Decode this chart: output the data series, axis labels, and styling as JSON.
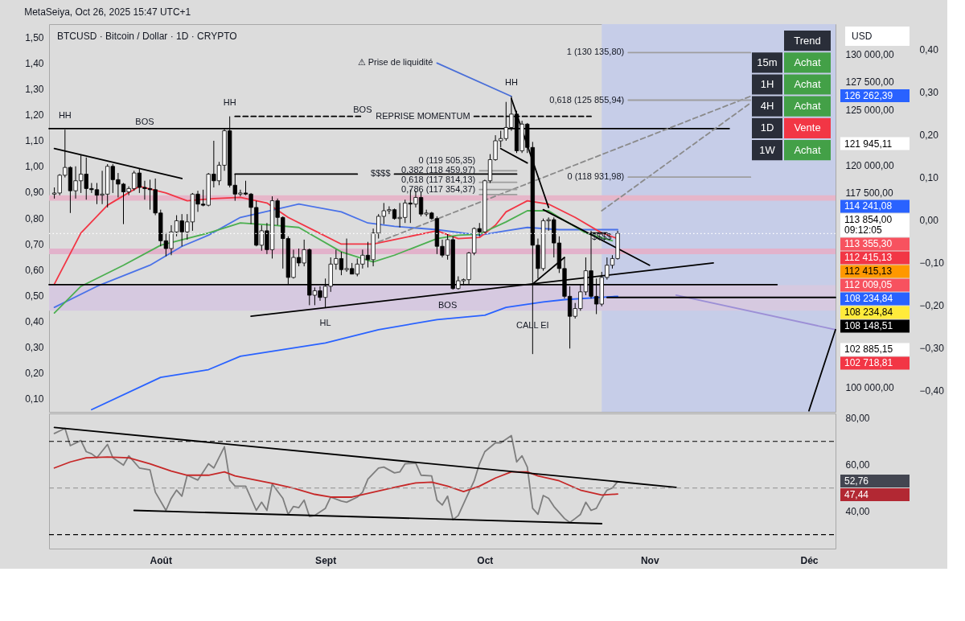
{
  "chart_data": [
    {
      "type": "candlestick",
      "title": "BTCUSD · Bitcoin / Dollar · 1D · CRYPTO",
      "ylabel": "USD",
      "x": [
        "2025-07-12",
        "2025-07-13",
        "2025-07-14",
        "2025-07-15",
        "2025-07-16",
        "2025-07-17",
        "2025-07-18",
        "2025-07-19",
        "2025-07-20",
        "2025-07-21",
        "2025-07-22",
        "2025-07-23",
        "2025-07-24",
        "2025-07-25",
        "2025-07-26",
        "2025-07-27",
        "2025-07-28",
        "2025-07-29",
        "2025-07-30",
        "2025-07-31",
        "2025-08-01",
        "2025-08-02",
        "2025-08-03",
        "2025-08-04",
        "2025-08-05",
        "2025-08-06",
        "2025-08-07",
        "2025-08-08",
        "2025-08-09",
        "2025-08-10",
        "2025-08-11",
        "2025-08-12",
        "2025-08-13",
        "2025-08-14",
        "2025-08-15",
        "2025-08-16",
        "2025-08-17",
        "2025-08-18",
        "2025-08-19",
        "2025-08-20",
        "2025-08-21",
        "2025-08-22",
        "2025-08-23",
        "2025-08-24",
        "2025-08-25",
        "2025-08-26",
        "2025-08-27",
        "2025-08-28",
        "2025-08-29",
        "2025-08-30",
        "2025-08-31",
        "2025-09-01",
        "2025-09-02",
        "2025-09-03",
        "2025-09-04",
        "2025-09-05",
        "2025-09-06",
        "2025-09-07",
        "2025-09-08",
        "2025-09-09",
        "2025-09-10",
        "2025-09-11",
        "2025-09-12",
        "2025-09-13",
        "2025-09-14",
        "2025-09-15",
        "2025-09-16",
        "2025-09-17",
        "2025-09-18",
        "2025-09-19",
        "2025-09-20",
        "2025-09-21",
        "2025-09-22",
        "2025-09-23",
        "2025-09-24",
        "2025-09-25",
        "2025-09-26",
        "2025-09-27",
        "2025-09-28",
        "2025-09-29",
        "2025-09-30",
        "2025-10-01",
        "2025-10-02",
        "2025-10-03",
        "2025-10-04",
        "2025-10-05",
        "2025-10-06",
        "2025-10-07",
        "2025-10-08",
        "2025-10-09",
        "2025-10-10",
        "2025-10-11",
        "2025-10-12",
        "2025-10-13",
        "2025-10-14",
        "2025-10-15",
        "2025-10-16",
        "2025-10-17",
        "2025-10-18",
        "2025-10-19",
        "2025-10-20",
        "2025-10-21",
        "2025-10-22",
        "2025-10-23",
        "2025-10-24",
        "2025-10-25",
        "2025-10-26"
      ],
      "ohlc": [
        [
          117400,
          118000,
          117000,
          117500
        ],
        [
          117500,
          119200,
          117300,
          119100
        ],
        [
          119100,
          123200,
          118900,
          119800
        ],
        [
          119800,
          119900,
          115700,
          117700
        ],
        [
          117700,
          119900,
          117000,
          118600
        ],
        [
          118600,
          120900,
          117500,
          119200
        ],
        [
          119200,
          120700,
          116900,
          117900
        ],
        [
          117900,
          118400,
          117500,
          117800
        ],
        [
          117800,
          118400,
          116500,
          117300
        ],
        [
          117300,
          119500,
          116500,
          117400
        ],
        [
          117400,
          120100,
          116200,
          119900
        ],
        [
          119900,
          120100,
          117500,
          118700
        ],
        [
          118700,
          119300,
          117100,
          118300
        ],
        [
          118300,
          118400,
          114700,
          117600
        ],
        [
          117600,
          118100,
          117300,
          117900
        ],
        [
          117900,
          119500,
          117700,
          119300
        ],
        [
          119300,
          119700,
          117500,
          118000
        ],
        [
          118000,
          118600,
          116900,
          117900
        ],
        [
          117900,
          118700,
          116000,
          117800
        ],
        [
          117800,
          118800,
          115500,
          115700
        ],
        [
          115700,
          116000,
          112700,
          113200
        ],
        [
          113200,
          113900,
          111800,
          112500
        ],
        [
          112500,
          114600,
          111900,
          114000
        ],
        [
          114000,
          115500,
          113600,
          115000
        ],
        [
          115000,
          115600,
          112700,
          114000
        ],
        [
          114000,
          115600,
          113300,
          114900
        ],
        [
          114900,
          117500,
          114100,
          117400
        ],
        [
          117400,
          117700,
          115800,
          116500
        ],
        [
          116500,
          117800,
          116300,
          116400
        ],
        [
          116400,
          119300,
          116300,
          119200
        ],
        [
          119200,
          122200,
          118000,
          118600
        ],
        [
          118600,
          120300,
          118200,
          120000
        ],
        [
          120000,
          123300,
          119500,
          123100
        ],
        [
          123100,
          124400,
          118000,
          118200
        ],
        [
          118200,
          119200,
          116800,
          117400
        ],
        [
          117400,
          117800,
          117200,
          117500
        ],
        [
          117500,
          118600,
          117300,
          117400
        ],
        [
          117400,
          117500,
          114700,
          116200
        ],
        [
          116200,
          116800,
          112700,
          112800
        ],
        [
          112800,
          114600,
          112300,
          114100
        ],
        [
          114100,
          114800,
          112000,
          112400
        ],
        [
          112400,
          117200,
          111600,
          116800
        ],
        [
          116800,
          117000,
          114600,
          115300
        ],
        [
          115300,
          115400,
          110700,
          113400
        ],
        [
          113400,
          113600,
          109300,
          109900
        ],
        [
          109900,
          112400,
          109800,
          111700
        ],
        [
          111700,
          112500,
          110900,
          111200
        ],
        [
          111200,
          113300,
          110900,
          112400
        ],
        [
          112400,
          112500,
          107400,
          108300
        ],
        [
          108300,
          109000,
          107400,
          108700
        ],
        [
          108700,
          109100,
          107800,
          108100
        ],
        [
          108100,
          109800,
          107200,
          109100
        ],
        [
          109100,
          111700,
          108600,
          111100
        ],
        [
          111100,
          112400,
          110600,
          111600
        ],
        [
          111600,
          112200,
          110100,
          110600
        ],
        [
          110600,
          113400,
          110400,
          110700
        ],
        [
          110700,
          111200,
          110200,
          110200
        ],
        [
          110200,
          111600,
          110000,
          111100
        ],
        [
          111100,
          112400,
          110700,
          111900
        ],
        [
          111900,
          113100,
          110800,
          111500
        ],
        [
          111500,
          114300,
          110900,
          113900
        ],
        [
          113900,
          115600,
          113400,
          115400
        ],
        [
          115400,
          116600,
          114700,
          115900
        ],
        [
          115900,
          116300,
          115600,
          116000
        ],
        [
          116000,
          116100,
          115100,
          115200
        ],
        [
          115200,
          116600,
          114400,
          115300
        ],
        [
          115300,
          116900,
          114800,
          116600
        ],
        [
          116600,
          117800,
          114800,
          116500
        ],
        [
          116500,
          117700,
          116200,
          117100
        ],
        [
          117100,
          117600,
          115400,
          115600
        ],
        [
          115600,
          116000,
          115400,
          115700
        ],
        [
          115700,
          115800,
          115100,
          115200
        ],
        [
          115200,
          115400,
          112000,
          112700
        ],
        [
          112700,
          113300,
          111700,
          111900
        ],
        [
          111900,
          113800,
          111500,
          113300
        ],
        [
          113300,
          113600,
          108800,
          108900
        ],
        [
          108900,
          110000,
          108800,
          109600
        ],
        [
          109600,
          109800,
          109200,
          109700
        ],
        [
          109700,
          112200,
          109300,
          112100
        ],
        [
          112100,
          114400,
          111900,
          114300
        ],
        [
          114300,
          114800,
          113600,
          114000
        ],
        [
          114000,
          118700,
          113900,
          118600
        ],
        [
          118600,
          121000,
          118400,
          120500
        ],
        [
          120500,
          122700,
          120400,
          122200
        ],
        [
          122200,
          123100,
          121600,
          122400
        ],
        [
          122400,
          125700,
          122200,
          123400
        ],
        [
          123400,
          126200,
          123100,
          124600
        ],
        [
          124600,
          124900,
          121100,
          121300
        ],
        [
          121300,
          124000,
          121100,
          123700
        ],
        [
          123700,
          123800,
          121100,
          121600
        ],
        [
          121600,
          122100,
          103000,
          112800
        ],
        [
          112800,
          113400,
          109800,
          110700
        ],
        [
          110700,
          115200,
          110500,
          115000
        ],
        [
          115000,
          115300,
          114100,
          115100
        ],
        [
          115100,
          115300,
          111700,
          113000
        ],
        [
          113000,
          113600,
          110300,
          110700
        ],
        [
          110700,
          111700,
          108000,
          108200
        ],
        [
          108200,
          109100,
          103500,
          106400
        ],
        [
          106400,
          107600,
          106200,
          107100
        ],
        [
          107100,
          109300,
          106900,
          108600
        ],
        [
          108600,
          111700,
          108300,
          110500
        ],
        [
          110500,
          114100,
          108000,
          108200
        ],
        [
          108200,
          109800,
          106600,
          107500
        ],
        [
          107500,
          110400,
          107300,
          109900
        ],
        [
          109900,
          111700,
          109700,
          111000
        ],
        [
          111000,
          111900,
          110700,
          111600
        ],
        [
          111600,
          114100,
          111500,
          113854
        ]
      ],
      "colors": [
        "#ffffff",
        "#ffffff",
        "#ffffff",
        "#000000",
        "#ffffff",
        "#ffffff",
        "#000000",
        "#000000",
        "#000000",
        "#ffffff",
        "#ffffff",
        "#000000",
        "#000000",
        "#000000",
        "#ffffff",
        "#ffffff",
        "#000000",
        "#000000",
        "#000000",
        "#000000",
        "#000000",
        "#000000",
        "#ffffff",
        "#ffffff",
        "#000000",
        "#ffffff",
        "#ffffff",
        "#000000",
        "#000000",
        "#ffffff",
        "#000000",
        "#ffffff",
        "#ffffff",
        "#000000",
        "#000000",
        "#ffffff",
        "#000000",
        "#000000",
        "#000000",
        "#ffffff",
        "#000000",
        "#ffffff",
        "#000000",
        "#000000",
        "#000000",
        "#ffffff",
        "#000000",
        "#ffffff",
        "#000000",
        "#ffffff",
        "#000000",
        "#ffffff",
        "#ffffff",
        "#ffffff",
        "#000000",
        "#ffffff",
        "#000000",
        "#ffffff",
        "#ffffff",
        "#000000",
        "#ffffff",
        "#ffffff",
        "#ffffff",
        "#ffffff",
        "#000000",
        "#ffffff",
        "#ffffff",
        "#000000",
        "#ffffff",
        "#000000",
        "#ffffff",
        "#000000",
        "#000000",
        "#000000",
        "#ffffff",
        "#000000",
        "#ffffff",
        "#ffffff",
        "#ffffff",
        "#ffffff",
        "#000000",
        "#ffffff",
        "#ffffff",
        "#ffffff",
        "#ffffff",
        "#ffffff",
        "#ffffff",
        "#000000",
        "#ffffff",
        "#000000",
        "#000000",
        "#000000",
        "#ffffff",
        "#ffffff",
        "#000000",
        "#000000",
        "#000000",
        "#000000",
        "#ffffff",
        "#ffffff",
        "#ffffff",
        "#000000",
        "#000000",
        "#ffffff",
        "#ffffff",
        "#ffffff",
        "#ffffff"
      ],
      "xlim": [
        "2025-07-11",
        "2025-12-06"
      ],
      "ylim": [
        97800,
        132700
      ],
      "yticks": [
        {
          "value": 100000,
          "label": "100 000,00"
        },
        {
          "value": 117500,
          "label": "117 500,00"
        },
        {
          "value": 120000,
          "label": "120 000,00"
        },
        {
          "value": 125000,
          "label": "125 000,00"
        },
        {
          "value": 127500,
          "label": "127 500,00"
        },
        {
          "value": 130000,
          "label": "130 000,00"
        }
      ],
      "y2lim": [
        0.05,
        1.55
      ],
      "y2ticks": [
        {
          "value": 0.1,
          "label": "0,10"
        },
        {
          "value": 0.2,
          "label": "0,20"
        },
        {
          "value": 0.3,
          "label": "0,30"
        },
        {
          "value": 0.4,
          "label": "0,40"
        },
        {
          "value": 0.5,
          "label": "0,50"
        },
        {
          "value": 0.6,
          "label": "0,60"
        },
        {
          "value": 0.7,
          "label": "0,70"
        },
        {
          "value": 0.8,
          "label": "0,80"
        },
        {
          "value": 0.9,
          "label": "0,90"
        },
        {
          "value": 1.0,
          "label": "1,00"
        },
        {
          "value": 1.1,
          "label": "1,10"
        },
        {
          "value": 1.2,
          "label": "1,20"
        },
        {
          "value": 1.3,
          "label": "1,30"
        },
        {
          "value": 1.4,
          "label": "1,40"
        },
        {
          "value": 1.5,
          "label": "1,50"
        }
      ],
      "y3lim": [
        -0.45,
        0.46
      ],
      "y3ticks": [
        {
          "value": -0.4,
          "label": "−0,40"
        },
        {
          "value": -0.3,
          "label": "−0,30"
        },
        {
          "value": -0.2,
          "label": "−0,20"
        },
        {
          "value": -0.1,
          "label": "−0,10"
        },
        {
          "value": 0,
          "label": "0,00"
        },
        {
          "value": 0.1,
          "label": "0,10"
        },
        {
          "value": 0.2,
          "label": "0,20"
        },
        {
          "value": 0.3,
          "label": "0,30"
        },
        {
          "value": 0.4,
          "label": "0,40"
        }
      ],
      "tick_labels": "y",
      "bands": [
        {
          "axis": "x",
          "from": "2025-10-23",
          "to": "2025-12-06",
          "color": "#c6cde8"
        },
        {
          "axis": "y",
          "from": 111990,
          "to": 112500,
          "color": "#e2b2cb"
        },
        {
          "axis": "y",
          "from": 106900,
          "to": 109200,
          "color": "#d6c9e0"
        },
        {
          "axis": "y",
          "from": 116800,
          "to": 117300,
          "color": "#e6b6c9"
        }
      ],
      "series": [
        {
          "type": "line",
          "color": "#2962ff",
          "x": [
            "2025-07-19",
            "2025-08-01",
            "2025-08-10",
            "2025-08-16",
            "2025-09-01",
            "2025-09-11",
            "2025-09-22",
            "2025-10-01",
            "2025-10-05",
            "2025-10-12",
            "2025-10-16",
            "2025-10-26"
          ],
          "values": [
            98000,
            100900,
            101600,
            102800,
            104000,
            105200,
            106100,
            106500,
            107200,
            107700,
            107900,
            108200
          ]
        },
        {
          "type": "line",
          "color": "#4a72e8",
          "x": [
            "2025-07-12",
            "2025-07-20",
            "2025-07-30",
            "2025-08-05",
            "2025-08-10",
            "2025-08-16",
            "2025-08-27",
            "2025-09-04",
            "2025-09-09",
            "2025-09-14",
            "2025-09-22",
            "2025-09-30",
            "2025-10-05",
            "2025-10-09",
            "2025-10-15",
            "2025-10-26"
          ],
          "values": [
            107200,
            109100,
            111000,
            112700,
            113700,
            115300,
            116500,
            115800,
            114800,
            114500,
            114200,
            113700,
            114100,
            114400,
            114200,
            114200
          ]
        },
        {
          "type": "line",
          "color": "#f23645",
          "x": [
            "2025-07-12",
            "2025-07-17",
            "2025-07-22",
            "2025-07-28",
            "2025-08-02",
            "2025-08-06",
            "2025-08-11",
            "2025-08-16",
            "2025-08-21",
            "2025-08-25",
            "2025-08-30",
            "2025-09-04",
            "2025-09-10",
            "2025-09-14",
            "2025-09-22",
            "2025-09-26",
            "2025-09-30",
            "2025-10-03",
            "2025-10-05",
            "2025-10-09",
            "2025-10-13",
            "2025-10-18",
            "2025-10-23",
            "2025-10-26"
          ],
          "values": [
            109300,
            113900,
            116400,
            118100,
            117500,
            116800,
            117000,
            117100,
            116600,
            115300,
            114100,
            112900,
            112900,
            113300,
            114100,
            113400,
            113500,
            114600,
            115800,
            116800,
            116500,
            115300,
            113900,
            113400
          ]
        },
        {
          "type": "line",
          "color": "#4caf50",
          "x": [
            "2025-07-12",
            "2025-07-17",
            "2025-07-25",
            "2025-08-01",
            "2025-08-10",
            "2025-08-16",
            "2025-08-22",
            "2025-08-27",
            "2025-09-04",
            "2025-09-10",
            "2025-09-14",
            "2025-09-22",
            "2025-09-26",
            "2025-09-30",
            "2025-10-05",
            "2025-10-09",
            "2025-10-13",
            "2025-10-15",
            "2025-10-20",
            "2025-10-25"
          ],
          "values": [
            106700,
            109100,
            111000,
            112800,
            113900,
            114800,
            114600,
            114400,
            112200,
            111300,
            111900,
            113400,
            113700,
            113800,
            114900,
            115900,
            115900,
            115300,
            113900,
            113200
          ]
        },
        {
          "type": "line",
          "color": "#000000",
          "x": [
            "2025-07-11",
            "2025-11-16"
          ],
          "values": [
            123300,
            123300
          ]
        },
        {
          "type": "line",
          "color": "#000000",
          "x": [
            "2025-07-11",
            "2025-11-25"
          ],
          "values": [
            109250,
            109250
          ]
        },
        {
          "type": "line",
          "color": "#000000",
          "x": [
            "2025-07-12",
            "2025-08-05"
          ],
          "values": [
            121500,
            118800
          ]
        },
        {
          "type": "line",
          "color": "#000000",
          "line_style": "dashed",
          "x": [
            "2025-08-15",
            "2025-09-08"
          ],
          "values": [
            124400,
            124400
          ]
        },
        {
          "type": "line",
          "color": "#000000",
          "line_style": "dashed",
          "x": [
            "2025-09-29",
            "2025-10-21"
          ],
          "values": [
            124400,
            124400
          ]
        },
        {
          "type": "line",
          "color": "#000000",
          "x": [
            "2025-08-15",
            "2025-09-07"
          ],
          "values": [
            119200,
            119200
          ]
        },
        {
          "type": "line",
          "color": "#000000",
          "x": [
            "2025-09-14",
            "2025-10-07"
          ],
          "values": [
            119200,
            119200
          ]
        },
        {
          "type": "line",
          "color": "#000000",
          "x": [
            "2025-08-18",
            "2025-11-13"
          ],
          "values": [
            106400,
            111200
          ]
        },
        {
          "type": "line",
          "color": "#8a8a8a",
          "line_style": "dashed",
          "x": [
            "2025-09-11",
            "2025-11-20"
          ],
          "values": [
            113100,
            126200
          ]
        },
        {
          "type": "line",
          "color": "#8a8a8a",
          "line_style": "dashed",
          "x": [
            "2025-10-23",
            "2025-11-20"
          ],
          "values": [
            115900,
            125600
          ]
        },
        {
          "type": "line",
          "color": "#000000",
          "x": [
            "2025-10-06",
            "2025-10-13"
          ],
          "values": [
            126000,
            116200
          ]
        },
        {
          "type": "line",
          "color": "#000000",
          "x": [
            "2025-10-04",
            "2025-10-09"
          ],
          "values": [
            121500,
            120200
          ]
        },
        {
          "type": "line",
          "color": "#000000",
          "x": [
            "2025-10-10",
            "2025-10-16"
          ],
          "values": [
            109300,
            111700
          ]
        },
        {
          "type": "line",
          "color": "#000000",
          "x": [
            "2025-10-12",
            "2025-11-01"
          ],
          "values": [
            116000,
            111000
          ]
        },
        {
          "type": "line",
          "color": "#000000",
          "x": [
            "2025-10-21",
            "2025-10-24"
          ],
          "values": [
            113900,
            113900
          ]
        },
        {
          "type": "line",
          "color": "#9c8fd6",
          "x": [
            "2025-11-06",
            "2025-12-06"
          ],
          "values": [
            108300,
            105200
          ]
        },
        {
          "type": "line",
          "color": "#000000",
          "x": [
            "2025-12-01",
            "2025-12-06"
          ],
          "values": [
            97900,
            105200
          ]
        },
        {
          "type": "line",
          "color": "#000000",
          "x": [
            "2025-10-24",
            "2025-12-06"
          ],
          "values": [
            108100,
            108100
          ]
        },
        {
          "type": "line",
          "color": "#4a6fd8",
          "x": [
            "2025-09-22",
            "2025-10-06"
          ],
          "values": [
            129200,
            126200
          ]
        },
        {
          "type": "line",
          "color": "#9e9e9e",
          "x": [
            "2025-10-28",
            "2025-11-20"
          ],
          "values": [
            130135.8,
            130135.8
          ]
        },
        {
          "type": "line",
          "color": "#9e9e9e",
          "x": [
            "2025-10-28",
            "2025-11-20"
          ],
          "values": [
            125855.94,
            125855.94
          ]
        },
        {
          "type": "line",
          "color": "#9e9e9e",
          "x": [
            "2025-10-28",
            "2025-11-20"
          ],
          "values": [
            118931.98,
            118931.98
          ]
        },
        {
          "type": "line",
          "color": "#9e9e9e",
          "x": [
            "2025-09-30",
            "2025-10-07"
          ],
          "values": [
            119505.35,
            119505.35
          ]
        },
        {
          "type": "line",
          "color": "#9e9e9e",
          "x": [
            "2025-09-30",
            "2025-10-07"
          ],
          "values": [
            118459.97,
            118459.97
          ]
        },
        {
          "type": "line",
          "color": "#9e9e9e",
          "x": [
            "2025-09-30",
            "2025-10-07"
          ],
          "values": [
            117814.13,
            117814.13
          ]
        },
        {
          "type": "line",
          "color": "#9e9e9e",
          "x": [
            "2025-09-30",
            "2025-10-07"
          ],
          "values": [
            117354.37,
            117354.37
          ]
        }
      ],
      "ref_lines": [
        {
          "axis": "y",
          "value": 113854,
          "label": "113 854,00\n09:12:05",
          "color": "#ffffff",
          "line_style": "dotted"
        }
      ],
      "annotations": [
        "MetaSeiya, Oct 26, 2025 15:47 UTC+1",
        {
          "text": "HH",
          "x": "2025-07-14",
          "y": 123200
        },
        {
          "text": "HH",
          "x": "2025-08-14",
          "y": 124400
        },
        {
          "text": "HH",
          "x": "2025-10-06",
          "y": 126200
        },
        {
          "text": "HL",
          "x": "2025-09-01",
          "y": 107200
        },
        {
          "text": "BOS",
          "x": "2025-07-29",
          "y": 123300
        },
        {
          "text": "BOS",
          "x": "2025-09-08",
          "y": 124400
        },
        {
          "text": "BOS",
          "x": "2025-09-24",
          "y": 106200
        },
        {
          "text": "REPRISE MOMENTUM",
          "x": "2025-09-29",
          "y": 124400
        },
        {
          "text": "$$$$",
          "x": "2025-09-14",
          "y": 119200
        },
        {
          "text": "$$$$",
          "x": "2025-10-23",
          "y": 112900
        },
        {
          "text": "⚠ Prise de liquidité",
          "x": "2025-09-22",
          "y": 129200
        },
        {
          "text": "CALL EI",
          "x": "2025-10-10",
          "y": 105000
        },
        {
          "text": "1 (130 135,80)",
          "x": "2025-10-28",
          "y": 130135.8
        },
        {
          "text": "0,618 (125 855,94)",
          "x": "2025-10-28",
          "y": 125855.94
        },
        {
          "text": "0 (118 931,98)",
          "x": "2025-10-28",
          "y": 118931.98
        },
        {
          "text": "0 (119 505,35)",
          "x": "2025-09-30",
          "y": 119505.35
        },
        {
          "text": "0,382 (118 459,97)",
          "x": "2025-09-30",
          "y": 118459.97
        },
        {
          "text": "0,618 (117 814,13)",
          "x": "2025-09-30",
          "y": 117814.13
        },
        {
          "text": "0,786 (117 354,37)",
          "x": "2025-09-30",
          "y": 117354.37
        }
      ]
    },
    {
      "type": "line",
      "xlim": [
        "2025-07-11",
        "2025-12-06"
      ],
      "xticks": [
        {
          "value": "2025-08-01",
          "label": "Août"
        },
        {
          "value": "2025-09-01",
          "label": "Sept"
        },
        {
          "value": "2025-10-01",
          "label": "Oct"
        },
        {
          "value": "2025-11-01",
          "label": "Nov"
        },
        {
          "value": "2025-12-01",
          "label": "Déc"
        }
      ],
      "ylim": [
        24,
        82
      ],
      "yticks": [
        {
          "value": 40,
          "label": "40,00"
        },
        {
          "value": 60,
          "label": "60,00"
        },
        {
          "value": 80,
          "label": "80,00"
        }
      ],
      "series": [
        {
          "color": "#7e7e7e",
          "x": [
            "2025-07-12",
            "2025-07-14",
            "2025-07-15",
            "2025-07-17",
            "2025-07-18",
            "2025-07-19",
            "2025-07-20",
            "2025-07-22",
            "2025-07-23",
            "2025-07-25",
            "2025-07-26",
            "2025-07-28",
            "2025-07-30",
            "2025-07-31",
            "2025-08-02",
            "2025-08-03",
            "2025-08-04",
            "2025-08-05",
            "2025-08-06",
            "2025-08-08",
            "2025-08-09",
            "2025-08-10",
            "2025-08-11",
            "2025-08-13",
            "2025-08-14",
            "2025-08-15",
            "2025-08-17",
            "2025-08-19",
            "2025-08-20",
            "2025-08-21",
            "2025-08-22",
            "2025-08-24",
            "2025-08-25",
            "2025-08-26",
            "2025-08-27",
            "2025-08-28",
            "2025-08-29",
            "2025-08-30",
            "2025-09-01",
            "2025-09-02",
            "2025-09-04",
            "2025-09-05",
            "2025-09-07",
            "2025-09-08",
            "2025-09-09",
            "2025-09-11",
            "2025-09-12",
            "2025-09-14",
            "2025-09-15",
            "2025-09-16",
            "2025-09-18",
            "2025-09-19",
            "2025-09-21",
            "2025-09-22",
            "2025-09-23",
            "2025-09-24",
            "2025-09-25",
            "2025-09-26",
            "2025-09-28",
            "2025-09-29",
            "2025-09-30",
            "2025-10-01",
            "2025-10-03",
            "2025-10-04",
            "2025-10-06",
            "2025-10-07",
            "2025-10-08",
            "2025-10-09",
            "2025-10-10",
            "2025-10-11",
            "2025-10-12",
            "2025-10-13",
            "2025-10-14",
            "2025-10-15",
            "2025-10-16",
            "2025-10-17",
            "2025-10-18",
            "2025-10-19",
            "2025-10-20",
            "2025-10-21",
            "2025-10-22",
            "2025-10-23",
            "2025-10-24",
            "2025-10-25",
            "2025-10-26"
          ],
          "values": [
            73.4,
            75.6,
            68.2,
            70.4,
            65.6,
            64.7,
            63.0,
            68.7,
            63.0,
            59.8,
            63.8,
            58.6,
            57.8,
            48.2,
            40.4,
            45.6,
            49.1,
            46.5,
            55.5,
            53.4,
            56.9,
            60.4,
            58.6,
            67.7,
            53.4,
            50.8,
            50.8,
            40.4,
            43.9,
            40.4,
            51.7,
            45.6,
            38.7,
            42.1,
            41.6,
            44.8,
            37.8,
            38.2,
            41.3,
            46.1,
            44.4,
            43.9,
            46.1,
            48.2,
            53.8,
            58.6,
            59.0,
            56.5,
            56.9,
            60.4,
            60.7,
            55.5,
            55.2,
            44.8,
            42.7,
            46.5,
            36.4,
            38.2,
            48.2,
            53.1,
            60.4,
            65.6,
            69.4,
            69.4,
            72.5,
            61.2,
            63.8,
            59.0,
            41.3,
            38.7,
            46.8,
            45.6,
            42.1,
            39.5,
            36.9,
            35.2,
            36.9,
            38.7,
            43.9,
            40.4,
            41.3,
            45.6,
            49.1,
            50.0,
            52.8
          ]
        },
        {
          "color": "#c62828",
          "x": [
            "2025-07-12",
            "2025-07-15",
            "2025-07-18",
            "2025-07-22",
            "2025-07-26",
            "2025-07-30",
            "2025-08-03",
            "2025-08-06",
            "2025-08-10",
            "2025-08-13",
            "2025-08-15",
            "2025-08-18",
            "2025-08-22",
            "2025-08-26",
            "2025-08-30",
            "2025-09-02",
            "2025-09-06",
            "2025-09-10",
            "2025-09-14",
            "2025-09-18",
            "2025-09-21",
            "2025-09-24",
            "2025-09-27",
            "2025-09-30",
            "2025-10-03",
            "2025-10-06",
            "2025-10-09",
            "2025-10-11",
            "2025-10-15",
            "2025-10-19",
            "2025-10-23",
            "2025-10-26"
          ],
          "values": [
            58.6,
            61.2,
            63.0,
            63.3,
            63.0,
            60.4,
            57.3,
            55.5,
            55.5,
            56.9,
            55.2,
            53.8,
            52.0,
            49.9,
            47.3,
            46.1,
            46.1,
            48.2,
            50.3,
            52.2,
            52.5,
            50.8,
            48.5,
            50.8,
            54.3,
            56.9,
            56.9,
            55.2,
            53.1,
            49.1,
            47.0,
            47.4
          ]
        },
        {
          "color": "#000000",
          "x": [
            "2025-07-12",
            "2025-11-06"
          ],
          "values": [
            76.0,
            50.3
          ]
        },
        {
          "color": "#000000",
          "x": [
            "2025-07-27",
            "2025-10-23"
          ],
          "values": [
            40.4,
            34.7
          ]
        }
      ],
      "ref_lines": [
        {
          "axis": "y",
          "value": 70,
          "color": "#000000",
          "line_style": "dashed"
        },
        {
          "axis": "y",
          "value": 50,
          "color": "#9e9e9e",
          "line_style": "dashed"
        },
        {
          "axis": "y",
          "value": 30,
          "color": "#000000",
          "line_style": "dashed"
        }
      ]
    },
    {
      "type": "other",
      "title": "Trend",
      "categories": [
        "15m",
        "1H",
        "4H",
        "1D",
        "1W"
      ],
      "value_labels": [
        "Achat",
        "Achat",
        "Achat",
        "Vente",
        "Achat"
      ],
      "colors": [
        "#43a047",
        "#43a047",
        "#43a047",
        "#f23645",
        "#43a047"
      ]
    },
    {
      "type": "other",
      "values": [
        126262.39,
        121945.11,
        114241.08,
        113355.3,
        112415.13,
        112415.13,
        112009.05,
        108234.84,
        108234.84,
        108148.51,
        102885.15,
        102718.81
      ],
      "value_labels": [
        "126 262,39",
        "121 945,11",
        "114 241,08",
        "113 355,30",
        "112 415,13",
        "112 415,13",
        "112 009,05",
        "108 234,84",
        "108 234,84",
        "108 148,51",
        "102 885,15",
        "102 718,81"
      ],
      "colors": [
        "#2962ff",
        "#ffffff",
        "#2962ff",
        "#f7525f",
        "#f23645",
        "#ff9800",
        "#f7525f",
        "#2962ff",
        "#ffeb3b",
        "#000000",
        "#ffffff",
        "#f23645"
      ]
    },
    {
      "type": "other",
      "values": [
        52.76,
        47.44
      ],
      "value_labels": [
        "52,76",
        "47,44"
      ],
      "colors": [
        "#434651",
        "#b22833"
      ]
    }
  ]
}
